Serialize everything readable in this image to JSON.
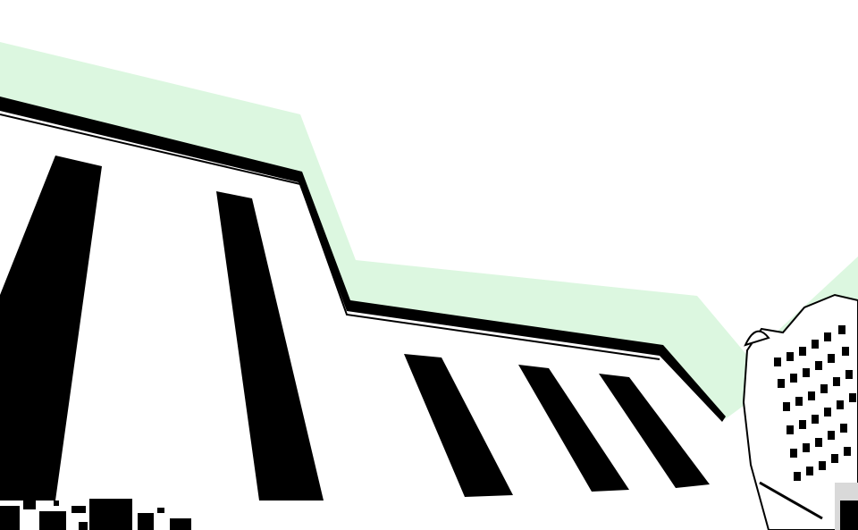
{
  "scene": {
    "kind": "high-contrast low-angle photograph of a building facade with a light green sky band",
    "colors": {
      "background": "#ffffff",
      "sky_band": "#dcf7e0",
      "ink": "#000000",
      "building_face": "#ffffff",
      "distant_tower_shade": "#d9d9d9"
    }
  }
}
